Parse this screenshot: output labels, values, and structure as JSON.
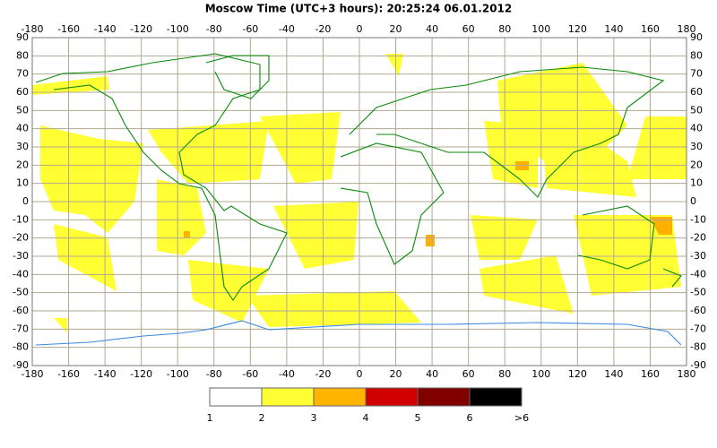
{
  "title": "Moscow Time (UTC+3 hours): 20:25:24   06.01.2012",
  "map": {
    "xlim": [
      -180,
      180
    ],
    "ylim": [
      -90,
      90
    ],
    "xticks": [
      -180,
      -160,
      -140,
      -120,
      -100,
      -80,
      -60,
      -40,
      -20,
      0,
      20,
      40,
      60,
      80,
      100,
      120,
      140,
      160,
      180
    ],
    "yticks": [
      90,
      80,
      70,
      60,
      50,
      40,
      30,
      20,
      10,
      0,
      -10,
      -20,
      -30,
      -40,
      -50,
      -60,
      -70,
      -80,
      -90
    ],
    "grid": true
  },
  "legend": {
    "labels": [
      "1",
      "2",
      "3",
      "4",
      "5",
      "6",
      ">6"
    ],
    "colors": [
      "#ffffff",
      "#ffff33",
      "#ffb400",
      "#d00000",
      "#800000",
      "#000000"
    ]
  }
}
